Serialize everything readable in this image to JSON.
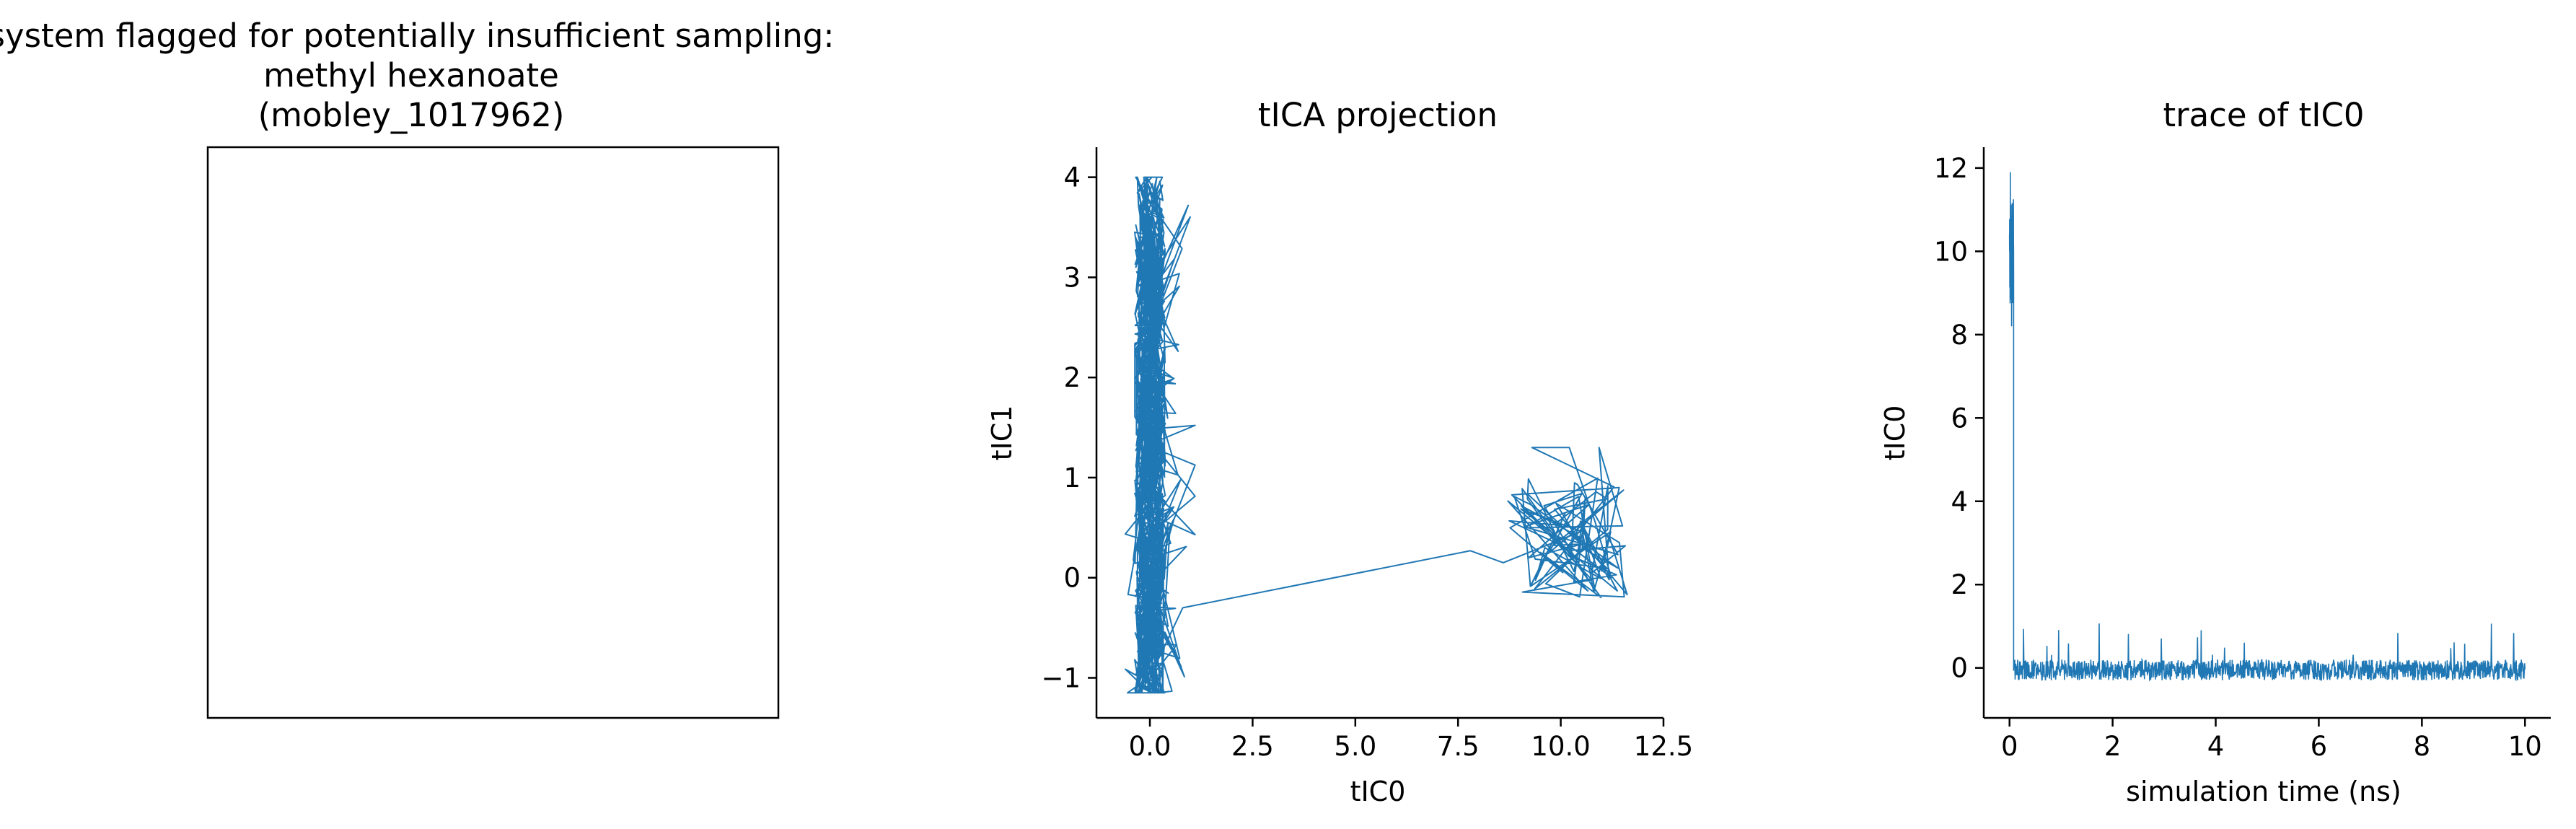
{
  "colors": {
    "series": "#1f77b4",
    "axis": "#000000",
    "background": "#ffffff"
  },
  "panel1": {
    "title_lines": [
      "system flagged for potentially insufficient sampling:",
      "methyl hexanoate",
      "(mobley_1017962)"
    ],
    "content": "empty framed box"
  },
  "chart_data": [
    {
      "type": "line",
      "title": "tICA projection",
      "xlabel": "tIC0",
      "ylabel": "tIC1",
      "xlim": [
        -1.3,
        12.5
      ],
      "ylim": [
        -1.4,
        4.3
      ],
      "xticks": [
        0,
        2.5,
        5,
        7.5,
        10,
        12.5
      ],
      "xtick_labels": [
        "0.0",
        "2.5",
        "5.0",
        "7.5",
        "10.0",
        "12.5"
      ],
      "yticks": [
        -1,
        0,
        1,
        2,
        3,
        4
      ],
      "ytick_labels": [
        "−1",
        "0",
        "1",
        "2",
        "3",
        "4"
      ],
      "spines": "left-bottom",
      "grid": false,
      "clusters": [
        {
          "x_range": [
            -0.6,
            1.1
          ],
          "y_range": [
            -1.15,
            4.0
          ],
          "note": "dense vertical band near tIC0 = 0"
        },
        {
          "x_range": [
            8.0,
            11.9
          ],
          "y_range": [
            -0.4,
            1.3
          ],
          "note": "cluster near tIC0 = 10, tIC1 = 0.4"
        }
      ],
      "connector": [
        [
          0.8,
          -0.3
        ],
        [
          7.8,
          0.27
        ],
        [
          8.6,
          0.15
        ]
      ]
    },
    {
      "type": "line",
      "title": "trace of tIC0",
      "xlabel": "simulation time (ns)",
      "ylabel": "tIC0",
      "xlim": [
        -0.5,
        10.5
      ],
      "ylim": [
        -1.2,
        12.5
      ],
      "xticks": [
        0,
        2,
        4,
        6,
        8,
        10
      ],
      "xtick_labels": [
        "0",
        "2",
        "4",
        "6",
        "8",
        "10"
      ],
      "yticks": [
        0,
        2,
        4,
        6,
        8,
        10,
        12
      ],
      "ytick_labels": [
        "0",
        "2",
        "4",
        "6",
        "8",
        "10",
        "12"
      ],
      "spines": "left-bottom",
      "grid": false,
      "segments": [
        {
          "t_range": [
            0.0,
            0.08
          ],
          "mean": 10.0,
          "min": 8.2,
          "max": 11.9
        },
        {
          "t_range": [
            0.08,
            10.0
          ],
          "mean": -0.05,
          "min": -0.45,
          "max": 1.15
        }
      ]
    }
  ]
}
